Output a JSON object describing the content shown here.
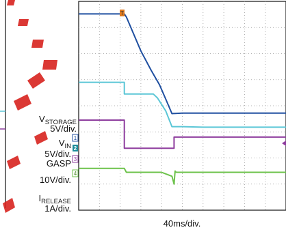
{
  "chart_data": {
    "type": "line",
    "xlabel": "40ms/div.",
    "grid": true,
    "grid_divisions": {
      "x": 10,
      "y": 8
    },
    "channels": [
      {
        "id": "1",
        "name": "VSTORAGE",
        "name_main": "V",
        "name_sub": "STORAGE",
        "scale": "5V/div."
      },
      {
        "id": "2",
        "name": "VIN",
        "name_main": "V",
        "name_sub": "IN",
        "scale": "5V/div."
      },
      {
        "id": "3",
        "name": "GASP",
        "name_main": "GASP",
        "name_sub": "",
        "scale": "10V/div."
      },
      {
        "id": "4",
        "name": "IRELEASE",
        "name_main": "I",
        "name_sub": "RELEASE",
        "scale": "1A/div."
      }
    ],
    "series": [
      {
        "name": "VSTORAGE",
        "color": "#1f4fa0",
        "x": [
          0,
          2.2,
          2.3,
          3.0,
          3.5,
          3.9,
          4.2,
          4.5,
          5.0,
          6.0,
          10.0
        ],
        "y": [
          7.52,
          7.52,
          7.4,
          6.1,
          5.35,
          4.8,
          4.25,
          3.7,
          3.72,
          3.72,
          3.72
        ]
      },
      {
        "name": "VIN",
        "color": "#5bc6d6",
        "x": [
          0,
          2.2,
          2.2,
          3.6,
          3.8,
          4.2,
          4.5,
          5.0,
          6.0,
          10.0
        ],
        "y": [
          4.9,
          4.9,
          4.45,
          4.45,
          4.3,
          3.8,
          3.2,
          3.2,
          3.18,
          3.18
        ],
        "marker": "2"
      },
      {
        "name": "GASP",
        "color": "#8e3d9e",
        "x": [
          0,
          2.2,
          2.2,
          4.6,
          4.6,
          10.0
        ],
        "y": [
          3.45,
          3.45,
          2.37,
          2.37,
          2.8,
          2.8
        ],
        "marker": "3"
      },
      {
        "name": "IRELEASE",
        "color": "#6cc24a",
        "x": [
          0,
          2.2,
          2.3,
          4.0,
          4.5,
          4.6,
          4.65,
          4.7,
          10.0
        ],
        "y": [
          1.6,
          1.6,
          1.45,
          1.45,
          1.3,
          1.0,
          1.5,
          1.45,
          1.45
        ],
        "marker": "4"
      }
    ],
    "trigger_marker": "T"
  }
}
